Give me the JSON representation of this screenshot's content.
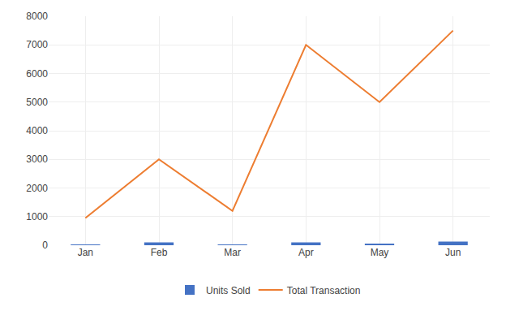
{
  "chart_data": {
    "type": "bar",
    "categories": [
      "Jan",
      "Feb",
      "Mar",
      "Apr",
      "May",
      "Jun"
    ],
    "series": [
      {
        "name": "Units Sold",
        "type": "bar",
        "color": "#4472C4",
        "values": [
          10,
          100,
          5,
          100,
          60,
          130
        ]
      },
      {
        "name": "Total Transaction",
        "type": "line",
        "color": "#ED7D31",
        "values": [
          950,
          3000,
          1200,
          7000,
          5000,
          7500
        ]
      }
    ],
    "ylim": [
      0,
      8000
    ],
    "yticks": [
      0,
      1000,
      2000,
      3000,
      4000,
      5000,
      6000,
      7000,
      8000
    ],
    "grid": true,
    "legend": "bottom"
  }
}
